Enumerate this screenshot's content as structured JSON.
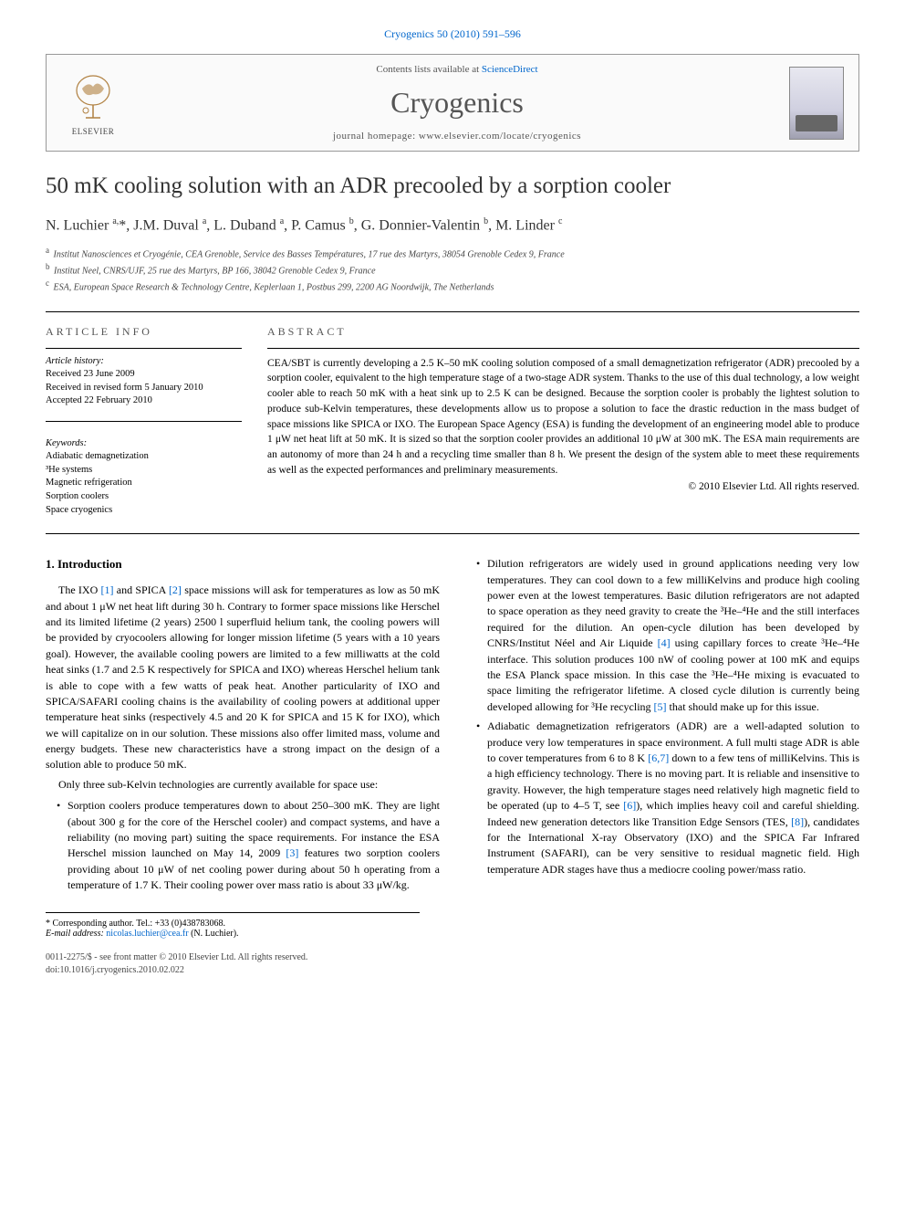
{
  "citation": "Cryogenics 50 (2010) 591–596",
  "header": {
    "contents_prefix": "Contents lists available at ",
    "contents_link": "ScienceDirect",
    "journal": "Cryogenics",
    "homepage_prefix": "journal homepage: ",
    "homepage_url": "www.elsevier.com/locate/cryogenics",
    "publisher": "ELSEVIER"
  },
  "title": "50 mK cooling solution with an ADR precooled by a sorption cooler",
  "authors_html": "N. Luchier <sup>a,</sup>*, J.M. Duval <sup>a</sup>, L. Duband <sup>a</sup>, P. Camus <sup>b</sup>, G. Donnier-Valentin <sup>b</sup>, M. Linder <sup>c</sup>",
  "affiliations": [
    {
      "sup": "a",
      "text": "Institut Nanosciences et Cryogénie, CEA Grenoble, Service des Basses Températures, 17 rue des Martyrs, 38054 Grenoble Cedex 9, France"
    },
    {
      "sup": "b",
      "text": "Institut Neel, CNRS/UJF, 25 rue des Martyrs, BP 166, 38042 Grenoble Cedex 9, France"
    },
    {
      "sup": "c",
      "text": "ESA, European Space Research & Technology Centre, Keplerlaan 1, Postbus 299, 2200 AG Noordwijk, The Netherlands"
    }
  ],
  "info": {
    "heading": "ARTICLE INFO",
    "history_label": "Article history:",
    "history": [
      "Received 23 June 2009",
      "Received in revised form 5 January 2010",
      "Accepted 22 February 2010"
    ],
    "keywords_label": "Keywords:",
    "keywords": [
      "Adiabatic demagnetization",
      "³He systems",
      "Magnetic refrigeration",
      "Sorption coolers",
      "Space cryogenics"
    ]
  },
  "abstract": {
    "heading": "ABSTRACT",
    "text": "CEA/SBT is currently developing a 2.5 K–50 mK cooling solution composed of a small demagnetization refrigerator (ADR) precooled by a sorption cooler, equivalent to the high temperature stage of a two-stage ADR system. Thanks to the use of this dual technology, a low weight cooler able to reach 50 mK with a heat sink up to 2.5 K can be designed. Because the sorption cooler is probably the lightest solution to produce sub-Kelvin temperatures, these developments allow us to propose a solution to face the drastic reduction in the mass budget of space missions like SPICA or IXO. The European Space Agency (ESA) is funding the development of an engineering model able to produce 1 μW net heat lift at 50 mK. It is sized so that the sorption cooler provides an additional 10 μW at 300 mK. The ESA main requirements are an autonomy of more than 24 h and a recycling time smaller than 8 h. We present the design of the system able to meet these requirements as well as the expected performances and preliminary measurements.",
    "copyright": "© 2010 Elsevier Ltd. All rights reserved."
  },
  "body": {
    "section_heading": "1. Introduction",
    "para1_html": "The IXO <span class=\"ref-link\">[1]</span> and SPICA <span class=\"ref-link\">[2]</span> space missions will ask for temperatures as low as 50 mK and about 1 μW net heat lift during 30 h. Contrary to former space missions like Herschel and its limited lifetime (2 years) 2500 l superfluid helium tank, the cooling powers will be provided by cryocoolers allowing for longer mission lifetime (5 years with a 10 years goal). However, the available cooling powers are limited to a few milliwatts at the cold heat sinks (1.7 and 2.5 K respectively for SPICA and IXO) whereas Herschel helium tank is able to cope with a few watts of peak heat. Another particularity of IXO and SPICA/SAFARI cooling chains is the availability of cooling powers at additional upper temperature heat sinks (respectively 4.5 and 20 K for SPICA and 15 K for IXO), which we will capitalize on in our solution. These missions also offer limited mass, volume and energy budgets. These new characteristics have a strong impact on the design of a solution able to produce 50 mK.",
    "para2": "Only three sub-Kelvin technologies are currently available for space use:",
    "bullets": [
      "Sorption coolers produce temperatures down to about 250–300 mK. They are light (about 300 g for the core of the Herschel cooler) and compact systems, and have a reliability (no moving part) suiting the space requirements. For instance the ESA Herschel mission launched on May 14, 2009 <span class=\"ref-link\">[3]</span> features two sorption coolers providing about 10 μW of net cooling power during about 50 h operating from a temperature of 1.7 K. Their cooling power over mass ratio is about 33 μW/kg.",
      "Dilution refrigerators are widely used in ground applications needing very low temperatures. They can cool down to a few milliKelvins and produce high cooling power even at the lowest temperatures. Basic dilution refrigerators are not adapted to space operation as they need gravity to create the ³He–⁴He and the still interfaces required for the dilution. An open-cycle dilution has been developed by CNRS/Institut Néel and Air Liquide <span class=\"ref-link\">[4]</span> using capillary forces to create ³He–⁴He interface. This solution produces 100 nW of cooling power at 100 mK and equips the ESA Planck space mission. In this case the ³He–⁴He mixing is evacuated to space limiting the refrigerator lifetime. A closed cycle dilution is currently being developed allowing for ³He recycling <span class=\"ref-link\">[5]</span> that should make up for this issue.",
      "Adiabatic demagnetization refrigerators (ADR) are a well-adapted solution to produce very low temperatures in space environment. A full multi stage ADR is able to cover temperatures from 6 to 8 K <span class=\"ref-link\">[6,7]</span> down to a few tens of milliKelvins. This is a high efficiency technology. There is no moving part. It is reliable and insensitive to gravity. However, the high temperature stages need relatively high magnetic field to be operated (up to 4–5 T, see <span class=\"ref-link\">[6]</span>), which implies heavy coil and careful shielding. Indeed new generation detectors like Transition Edge Sensors (TES, <span class=\"ref-link\">[8]</span>), candidates for the International X-ray Observatory (IXO) and the SPICA Far Infrared Instrument (SAFARI), can be very sensitive to residual magnetic field. High temperature ADR stages have thus a mediocre cooling power/mass ratio."
    ]
  },
  "footnote": {
    "corresponding": "* Corresponding author. Tel.: +33 (0)438783068.",
    "email_label": "E-mail address: ",
    "email": "nicolas.luchier@cea.fr",
    "email_suffix": " (N. Luchier)."
  },
  "bottom": {
    "line1": "0011-2275/$ - see front matter © 2010 Elsevier Ltd. All rights reserved.",
    "line2": "doi:10.1016/j.cryogenics.2010.02.022"
  },
  "colors": {
    "link": "#0066cc",
    "text": "#000000",
    "muted": "#555555",
    "border": "#999999"
  }
}
